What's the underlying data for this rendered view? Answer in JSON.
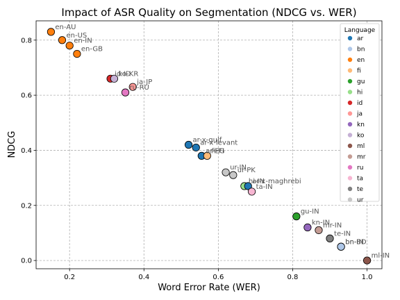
{
  "chart_data": {
    "type": "scatter",
    "title": "Impact of ASR Quality on Segmentation (NDCG vs. WER)",
    "xlabel": "Word Error Rate (WER)",
    "ylabel": "NDCG",
    "xlim": [
      0.11,
      1.04
    ],
    "ylim": [
      -0.03,
      0.87
    ],
    "xticks": [
      0.2,
      0.4,
      0.6,
      0.8,
      1.0
    ],
    "xtick_labels": [
      "0.2",
      "0.4",
      "0.6",
      "0.8",
      "1.0"
    ],
    "yticks": [
      0.0,
      0.2,
      0.4,
      0.6,
      0.8
    ],
    "ytick_labels": [
      "0.0",
      "0.2",
      "0.4",
      "0.6",
      "0.8"
    ],
    "grid": true,
    "legend": {
      "title": "Language",
      "placement": "right",
      "entries": [
        {
          "name": "ar",
          "color": "#1f77b4"
        },
        {
          "name": "bn",
          "color": "#aec7e8"
        },
        {
          "name": "en",
          "color": "#ff7f0e"
        },
        {
          "name": "fi",
          "color": "#ffbb78"
        },
        {
          "name": "gu",
          "color": "#2ca02c"
        },
        {
          "name": "hi",
          "color": "#98df8a"
        },
        {
          "name": "id",
          "color": "#d62728"
        },
        {
          "name": "ja",
          "color": "#ff9896"
        },
        {
          "name": "kn",
          "color": "#9467bd"
        },
        {
          "name": "ko",
          "color": "#c5b0d5"
        },
        {
          "name": "ml",
          "color": "#8c564b"
        },
        {
          "name": "mr",
          "color": "#c49c94"
        },
        {
          "name": "ru",
          "color": "#e377c2"
        },
        {
          "name": "ta",
          "color": "#f7b6d2"
        },
        {
          "name": "te",
          "color": "#7f7f7f"
        },
        {
          "name": "ur",
          "color": "#c7c7c7"
        }
      ]
    },
    "points": [
      {
        "label": "en-AU",
        "lang": "en",
        "x": 0.15,
        "y": 0.83
      },
      {
        "label": "en-US",
        "lang": "en",
        "x": 0.18,
        "y": 0.8
      },
      {
        "label": "en-IN",
        "lang": "en",
        "x": 0.2,
        "y": 0.78
      },
      {
        "label": "en-GB",
        "lang": "en",
        "x": 0.22,
        "y": 0.75
      },
      {
        "label": "id-ID",
        "lang": "id",
        "x": 0.31,
        "y": 0.66
      },
      {
        "label": "ko-KR",
        "lang": "ko",
        "x": 0.32,
        "y": 0.66
      },
      {
        "label": "ja-JP",
        "lang": "ja",
        "x": 0.37,
        "y": 0.63
      },
      {
        "label": "ru-RU",
        "lang": "ru",
        "x": 0.35,
        "y": 0.61
      },
      {
        "label": "ar-x-gulf",
        "lang": "ar",
        "x": 0.52,
        "y": 0.42
      },
      {
        "label": "ar-x-levant",
        "lang": "ar",
        "x": 0.54,
        "y": 0.41
      },
      {
        "label": "ar-EG",
        "lang": "ar",
        "x": 0.555,
        "y": 0.38
      },
      {
        "label": "fi-FI",
        "lang": "fi",
        "x": 0.57,
        "y": 0.38
      },
      {
        "label": "ur-IN",
        "lang": "ur",
        "x": 0.62,
        "y": 0.32
      },
      {
        "label": "ur-PK",
        "lang": "ur",
        "x": 0.64,
        "y": 0.31
      },
      {
        "label": "hi-IN",
        "lang": "hi",
        "x": 0.67,
        "y": 0.27
      },
      {
        "label": "ar-x-maghrebi",
        "lang": "ar",
        "x": 0.68,
        "y": 0.27
      },
      {
        "label": "ta-IN",
        "lang": "ta",
        "x": 0.69,
        "y": 0.25
      },
      {
        "label": "gu-IN",
        "lang": "gu",
        "x": 0.81,
        "y": 0.16
      },
      {
        "label": "kn-IN",
        "lang": "kn",
        "x": 0.84,
        "y": 0.12
      },
      {
        "label": "mr-IN",
        "lang": "mr",
        "x": 0.87,
        "y": 0.11
      },
      {
        "label": "te-IN",
        "lang": "te",
        "x": 0.9,
        "y": 0.08
      },
      {
        "label": "bn-BD",
        "lang": "bn",
        "x": 0.93,
        "y": 0.05
      },
      {
        "label": "bn-IN",
        "lang": "bn",
        "x": 0.93,
        "y": 0.05
      },
      {
        "label": "ml-IN",
        "lang": "ml",
        "x": 1.0,
        "y": 0.0
      }
    ]
  }
}
